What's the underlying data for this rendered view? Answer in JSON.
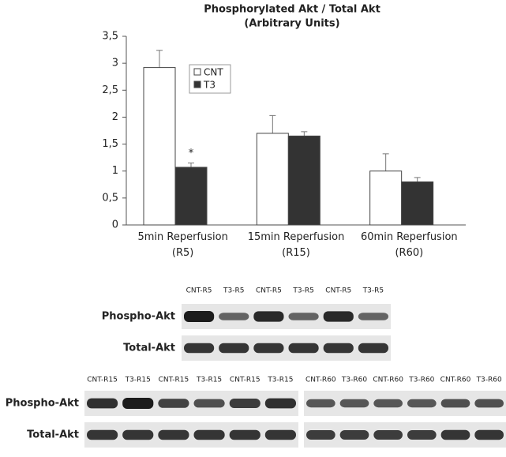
{
  "chart_data": {
    "type": "bar",
    "title": "Phosphorylated Akt / Total Akt",
    "subtitle": "(Arbitrary Units)",
    "categories": [
      "5min Reperfusion\n(R5)",
      "15min Reperfusion\n(R15)",
      "60min Reperfusion\n(R60)"
    ],
    "series": [
      {
        "name": "CNT",
        "color": "#ffffff",
        "values": [
          2.92,
          1.7,
          1.0
        ],
        "errors": [
          0.32,
          0.33,
          0.32
        ]
      },
      {
        "name": "T3",
        "color": "#333333",
        "values": [
          1.07,
          1.65,
          0.8
        ],
        "errors": [
          0.08,
          0.08,
          0.08
        ]
      }
    ],
    "annotation": "*",
    "ylim": [
      0,
      3.5
    ],
    "yticks": [
      0,
      {
        "value": 0.5,
        "label": "0,5"
      },
      1,
      {
        "value": 1.5,
        "label": "1,5"
      },
      2,
      {
        "value": 2.5,
        "label": "2,5"
      },
      3,
      {
        "value": 3.5,
        "label": "3,5"
      }
    ],
    "grid": false
  },
  "blots": [
    {
      "lanes": [
        "CNT-R5",
        "T3-R5",
        "CNT-R5",
        "T3-R5",
        "CNT-R5",
        "T3-R5"
      ],
      "rows": [
        "Phospho-Akt",
        "Total-Akt"
      ]
    },
    {
      "lanes": [
        "CNT-R15",
        "T3-R15",
        "CNT-R15",
        "T3-R15",
        "CNT-R15",
        "T3-R15"
      ],
      "rows": [
        "Phospho-Akt",
        "Total-Akt"
      ]
    },
    {
      "lanes": [
        "CNT-R60",
        "T3-R60",
        "CNT-R60",
        "T3-R60",
        "CNT-R60",
        "T3-R60"
      ]
    }
  ]
}
